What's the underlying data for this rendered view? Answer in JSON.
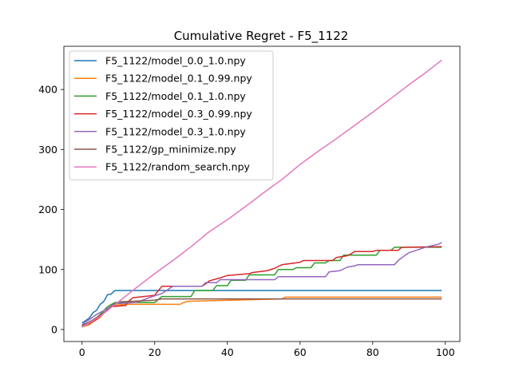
{
  "chart_data": {
    "type": "line",
    "title": "Cumulative Regret - F5_1122",
    "xlabel": "",
    "ylabel": "",
    "xlim": [
      -5.0,
      104.0
    ],
    "ylim": [
      -20.0,
      472.0
    ],
    "xticks": [
      0,
      20,
      40,
      60,
      80,
      100
    ],
    "yticks": [
      0,
      100,
      200,
      300,
      400
    ],
    "grid": false,
    "legend_position": "upper left",
    "series": [
      {
        "name": "F5_1122/model_0.0_1.0.npy",
        "color": "#1f77b4",
        "points": [
          [
            0,
            11
          ],
          [
            2,
            19
          ],
          [
            3,
            28
          ],
          [
            4,
            32
          ],
          [
            5,
            42
          ],
          [
            6,
            47
          ],
          [
            7,
            58
          ],
          [
            8,
            59
          ],
          [
            9,
            65
          ],
          [
            99,
            65
          ]
        ]
      },
      {
        "name": "F5_1122/model_0.1_0.99.npy",
        "color": "#ff7f0e",
        "points": [
          [
            0,
            4
          ],
          [
            2,
            8
          ],
          [
            3,
            13
          ],
          [
            5,
            20
          ],
          [
            6,
            28
          ],
          [
            7,
            33
          ],
          [
            8,
            40
          ],
          [
            12,
            42
          ],
          [
            27,
            42
          ],
          [
            28,
            45
          ],
          [
            29,
            47
          ],
          [
            55,
            51
          ],
          [
            56,
            54
          ],
          [
            99,
            54
          ]
        ]
      },
      {
        "name": "F5_1122/model_0.1_1.0.npy",
        "color": "#2ca02c",
        "points": [
          [
            0,
            7
          ],
          [
            3,
            14
          ],
          [
            5,
            25
          ],
          [
            7,
            38
          ],
          [
            9,
            45
          ],
          [
            20,
            45
          ],
          [
            21,
            50
          ],
          [
            22,
            55
          ],
          [
            30,
            55
          ],
          [
            31,
            65
          ],
          [
            36,
            65
          ],
          [
            37,
            73
          ],
          [
            40,
            73
          ],
          [
            41,
            82
          ],
          [
            45,
            82
          ],
          [
            46,
            91
          ],
          [
            53,
            91
          ],
          [
            54,
            100
          ],
          [
            58,
            100
          ],
          [
            59,
            103
          ],
          [
            63,
            103
          ],
          [
            64,
            111
          ],
          [
            67,
            111
          ],
          [
            68,
            115
          ],
          [
            71,
            115
          ],
          [
            72,
            124
          ],
          [
            81,
            124
          ],
          [
            82,
            132
          ],
          [
            85,
            132
          ],
          [
            86,
            137
          ],
          [
            99,
            137
          ]
        ]
      },
      {
        "name": "F5_1122/model_0.3_0.99.npy",
        "color": "#d62728",
        "points": [
          [
            0,
            5
          ],
          [
            2,
            10
          ],
          [
            4,
            17
          ],
          [
            6,
            28
          ],
          [
            8,
            38
          ],
          [
            12,
            40
          ],
          [
            13,
            48
          ],
          [
            14,
            53
          ],
          [
            20,
            57
          ],
          [
            21,
            65
          ],
          [
            22,
            72
          ],
          [
            33,
            72
          ],
          [
            34,
            76
          ],
          [
            35,
            81
          ],
          [
            38,
            86
          ],
          [
            40,
            90
          ],
          [
            46,
            93
          ],
          [
            47,
            95
          ],
          [
            51,
            98
          ],
          [
            53,
            102
          ],
          [
            55,
            108
          ],
          [
            60,
            112
          ],
          [
            61,
            115
          ],
          [
            69,
            115
          ],
          [
            70,
            120
          ],
          [
            73,
            123
          ],
          [
            74,
            126
          ],
          [
            75,
            130
          ],
          [
            80,
            130
          ],
          [
            81,
            132
          ],
          [
            87,
            132
          ],
          [
            88,
            137
          ],
          [
            99,
            138
          ]
        ]
      },
      {
        "name": "F5_1122/model_0.3_1.0.npy",
        "color": "#9467bd",
        "points": [
          [
            0,
            8
          ],
          [
            4,
            25
          ],
          [
            7,
            35
          ],
          [
            9,
            43
          ],
          [
            15,
            45
          ],
          [
            18,
            52
          ],
          [
            22,
            60
          ],
          [
            25,
            72
          ],
          [
            33,
            72
          ],
          [
            34,
            78
          ],
          [
            37,
            78
          ],
          [
            38,
            83
          ],
          [
            53,
            83
          ],
          [
            54,
            88
          ],
          [
            67,
            88
          ],
          [
            68,
            96
          ],
          [
            71,
            98
          ],
          [
            73,
            104
          ],
          [
            75,
            106
          ],
          [
            76,
            108
          ],
          [
            86,
            108
          ],
          [
            87,
            115
          ],
          [
            89,
            124
          ],
          [
            90,
            128
          ],
          [
            95,
            138
          ],
          [
            98,
            142
          ],
          [
            99,
            145
          ]
        ]
      },
      {
        "name": "F5_1122/gp_minimize.npy",
        "color": "#8c564b",
        "points": [
          [
            0,
            6
          ],
          [
            3,
            16
          ],
          [
            6,
            28
          ],
          [
            9,
            42
          ],
          [
            10,
            46
          ],
          [
            17,
            48
          ],
          [
            20,
            49
          ],
          [
            22,
            51
          ],
          [
            99,
            51
          ]
        ]
      },
      {
        "name": "F5_1122/random_search.npy",
        "color": "#e377c2",
        "points": [
          [
            0,
            4
          ],
          [
            5,
            22
          ],
          [
            10,
            46
          ],
          [
            15,
            70
          ],
          [
            20,
            93
          ],
          [
            25,
            115
          ],
          [
            30,
            138
          ],
          [
            35,
            163
          ],
          [
            40,
            183
          ],
          [
            45,
            205
          ],
          [
            50,
            228
          ],
          [
            55,
            250
          ],
          [
            60,
            275
          ],
          [
            65,
            297
          ],
          [
            70,
            318
          ],
          [
            75,
            340
          ],
          [
            80,
            362
          ],
          [
            85,
            385
          ],
          [
            90,
            408
          ],
          [
            95,
            430
          ],
          [
            99,
            449
          ]
        ]
      }
    ]
  }
}
